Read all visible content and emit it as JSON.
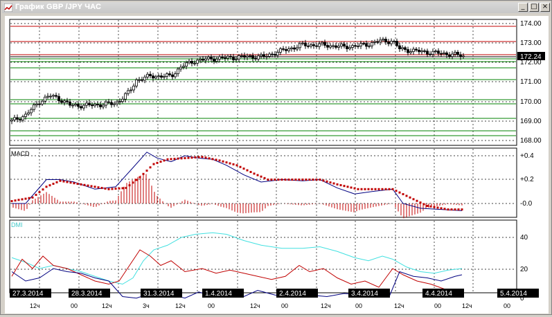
{
  "window": {
    "title": "График GBP /JPY  ЧАС",
    "buttons": {
      "minimize": "_",
      "maximize": "□",
      "close": "×"
    }
  },
  "price_panel": {
    "y_ticks": [
      "174.00",
      "173.00",
      "172.00",
      "171.00",
      "170.00",
      "169.00",
      "168.00"
    ],
    "current_price": "172.24"
  },
  "macd_panel": {
    "label": "MACD",
    "y_ticks": [
      "+0.4",
      "+0.2",
      "-0.0"
    ]
  },
  "dmi_panel": {
    "label": "DMI",
    "y_ticks": [
      "40",
      "20",
      "0"
    ]
  },
  "date_axis": {
    "dates": [
      "27.3.2014",
      "28.3.2014",
      "31.3.2014",
      "1.4.2014",
      "2.4.2014",
      "3.4.2014",
      "4.4.2014",
      "5.4.2014"
    ],
    "hours": [
      "12ч",
      "00",
      "12ч",
      "3ч",
      "12ч",
      "00",
      "12ч",
      "00",
      "12ч",
      "00",
      "12ч",
      "00"
    ]
  },
  "colors": {
    "candle": "#000000",
    "macd_line": "#000080",
    "signal_line": "#c00000",
    "dmi_line": "#40e0e0",
    "plus_di": "#c00000",
    "minus_di": "#000080",
    "grid": "#000000",
    "green_level": "#008000",
    "red_level": "#c00000"
  }
}
